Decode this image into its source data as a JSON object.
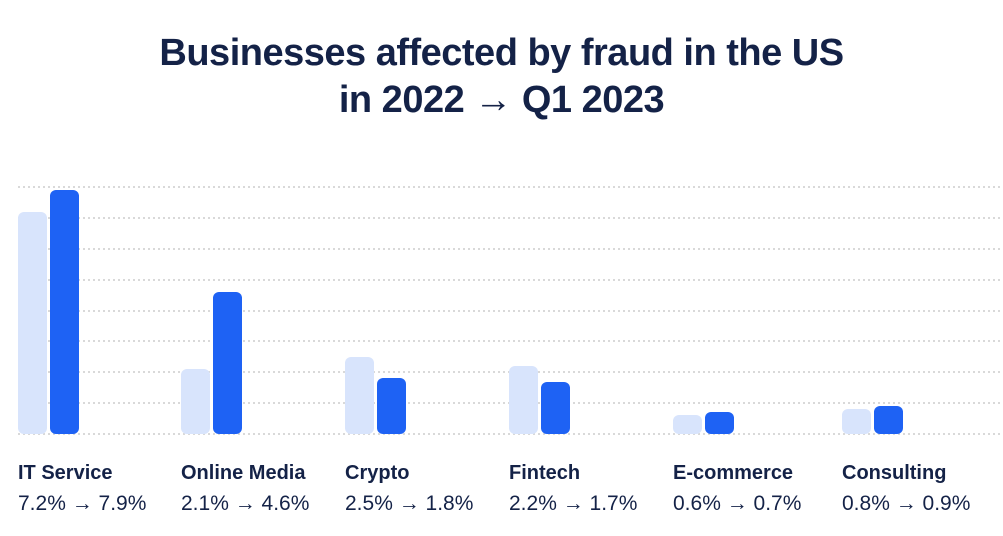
{
  "title": {
    "line1": "Businesses affected by fraud in the US",
    "line2": "in 2022 → Q1 2023"
  },
  "colors": {
    "navy": "#142247",
    "bar_2022": "#d8e4fc",
    "bar_q1_2023": "#1e62f4",
    "gridline": "#d9d9d9",
    "background": "#ffffff"
  },
  "chart_data": {
    "type": "bar",
    "title": "Businesses affected by fraud in the US in 2022 → Q1 2023",
    "unit": "%",
    "categories": [
      "IT Service",
      "Online Media",
      "Crypto",
      "Fintech",
      "E-commerce",
      "Consulting"
    ],
    "series": [
      {
        "name": "2022",
        "color": "#d8e4fc",
        "values": [
          7.2,
          2.1,
          2.5,
          2.2,
          0.6,
          0.8
        ]
      },
      {
        "name": "Q1 2023",
        "color": "#1e62f4",
        "values": [
          7.9,
          4.6,
          1.8,
          1.7,
          0.7,
          0.9
        ]
      }
    ],
    "value_labels": [
      "7.2% → 7.9%",
      "2.1% → 4.6%",
      "2.5% → 1.8%",
      "2.2% → 1.7%",
      "0.6% → 0.7%",
      "0.8% → 0.9%"
    ],
    "ylim": [
      0,
      8
    ],
    "gridline_step": 1,
    "grid": "horizontal dotted",
    "legend_position": "none",
    "y_axis_labels": "none"
  }
}
